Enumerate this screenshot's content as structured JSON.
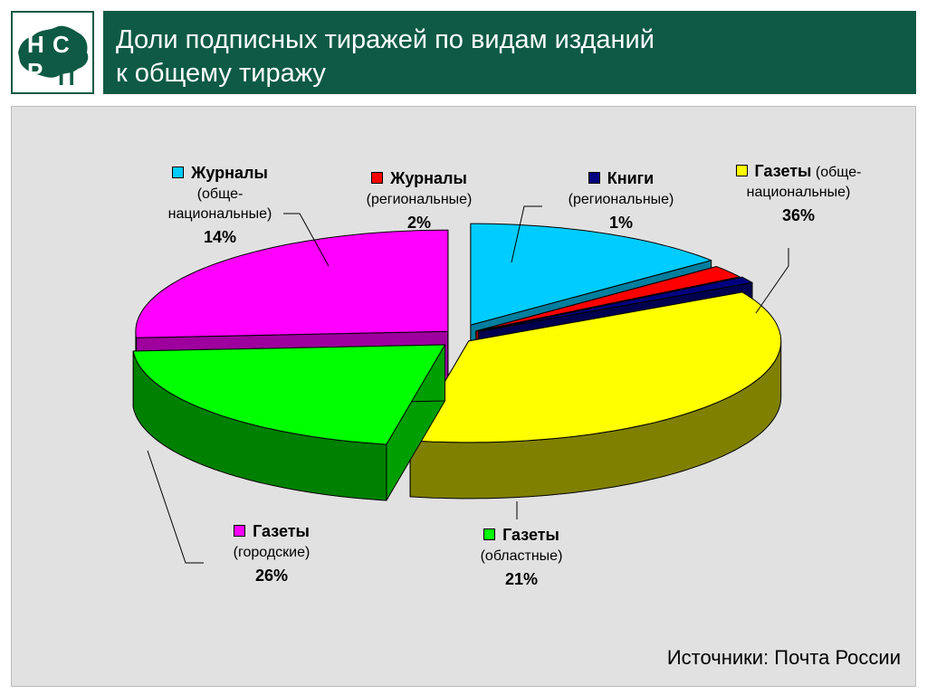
{
  "header": {
    "title_line1": "Доли подписных тиражей по видам изданий",
    "title_line2": "к общему тиражу"
  },
  "logo": {
    "letters": [
      "Н",
      "С",
      "Р",
      "П"
    ]
  },
  "chart_data": {
    "type": "pie",
    "style": "3d-exploded",
    "slices": [
      {
        "name": "Журналы",
        "detail": "(обще-национальные)",
        "detail_line1": "(обще-",
        "detail_line2": "национальные)",
        "value": 14,
        "label": "14%",
        "color": "#00ccff"
      },
      {
        "name": "Журналы",
        "detail": "(региональные)",
        "value": 2,
        "label": "2%",
        "color": "#ff0000"
      },
      {
        "name": "Книги",
        "detail": "(региональные)",
        "value": 1,
        "label": "1%",
        "color": "#000080"
      },
      {
        "name": "Газеты",
        "detail": "(обще-национальные)",
        "detail_line1": "(обще-",
        "detail_line2": "национальные)",
        "value": 36,
        "label": "36%",
        "color": "#ffff00"
      },
      {
        "name": "Газеты",
        "detail": "(областные)",
        "value": 21,
        "label": "21%",
        "color": "#00ff00"
      },
      {
        "name": "Газеты",
        "detail": "(городские)",
        "value": 26,
        "label": "26%",
        "color": "#ff00ff"
      }
    ]
  },
  "source": "Источники: Почта России"
}
